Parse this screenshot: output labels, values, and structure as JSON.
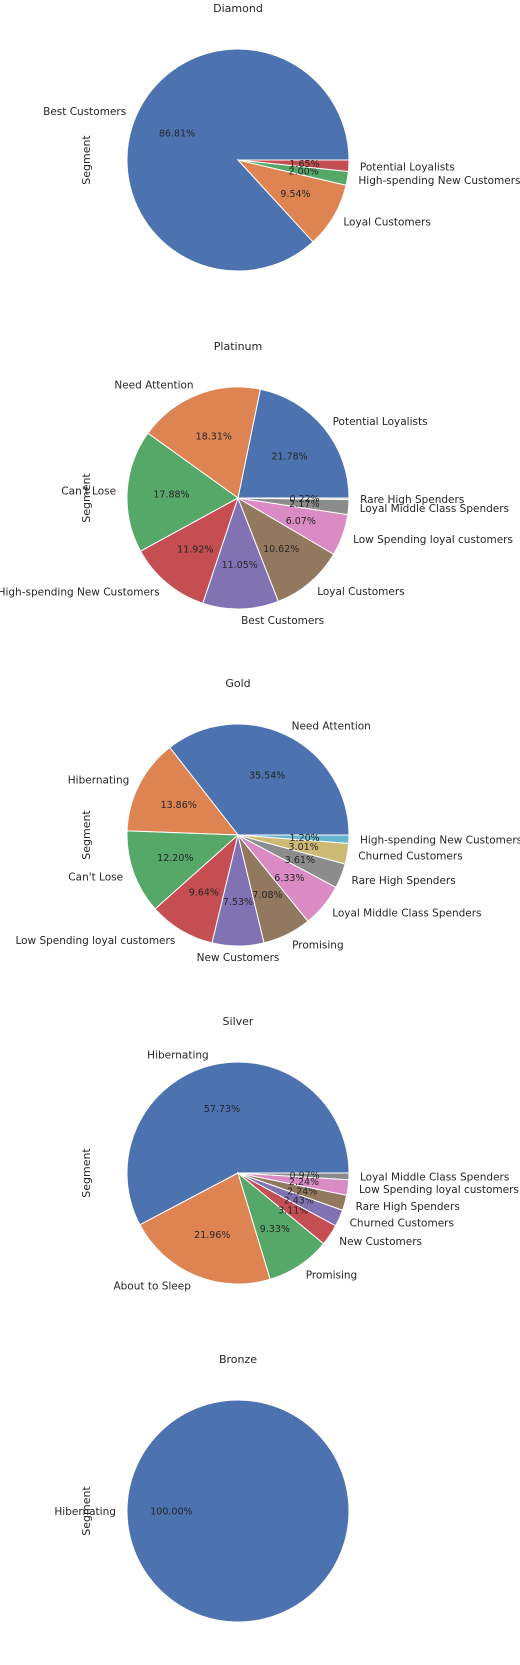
{
  "chart_data": [
    {
      "type": "pie",
      "title": "Diamond",
      "ylabel": "Segment",
      "labels": [
        "Best Customers",
        "Loyal Customers",
        "High-spending New Customers",
        "Potential Loyalists"
      ],
      "values": [
        86.81,
        9.54,
        2.0,
        1.65
      ],
      "value_labels": [
        "86.81%",
        "9.54%",
        "2.00%",
        "1.65%"
      ],
      "colors": [
        "#4c72b0",
        "#dd8452",
        "#55a868",
        "#c44e52"
      ]
    },
    {
      "type": "pie",
      "title": "Platinum",
      "ylabel": "Segment",
      "labels": [
        "Potential Loyalists",
        "Need Attention",
        "Can't Lose",
        "High-spending New Customers",
        "Best Customers",
        "Loyal Customers",
        "Low Spending loyal customers",
        "Loyal Middle Class Spenders",
        "Rare High Spenders"
      ],
      "values": [
        21.78,
        18.31,
        17.88,
        11.92,
        11.05,
        10.62,
        6.07,
        2.17,
        0.22
      ],
      "value_labels": [
        "21.78%",
        "18.31%",
        "17.88%",
        "11.92%",
        "11.05%",
        "10.62%",
        "6.07%",
        "2.17%",
        "0.22%"
      ],
      "colors": [
        "#4c72b0",
        "#dd8452",
        "#55a868",
        "#c44e52",
        "#8172b3",
        "#937860",
        "#da8bc3",
        "#8c8c8c",
        "#ccb974"
      ]
    },
    {
      "type": "pie",
      "title": "Gold",
      "ylabel": "Segment",
      "labels": [
        "Need Attention",
        "Hibernating",
        "Can't Lose",
        "Low Spending loyal customers",
        "New Customers",
        "Promising",
        "Loyal Middle Class Spenders",
        "Rare High Spenders",
        "Churned Customers",
        "High-spending New Customers"
      ],
      "values": [
        35.54,
        13.86,
        12.2,
        9.64,
        7.53,
        7.08,
        6.33,
        3.61,
        3.01,
        1.2
      ],
      "value_labels": [
        "35.54%",
        "13.86%",
        "12.20%",
        "9.64%",
        "7.53%",
        "7.08%",
        "6.33%",
        "3.61%",
        "3.01%",
        "1.20%"
      ],
      "colors": [
        "#4c72b0",
        "#dd8452",
        "#55a868",
        "#c44e52",
        "#8172b3",
        "#937860",
        "#da8bc3",
        "#8c8c8c",
        "#ccb974",
        "#64b5cd"
      ]
    },
    {
      "type": "pie",
      "title": "Silver",
      "ylabel": "Segment",
      "labels": [
        "Hibernating",
        "About to Sleep",
        "Promising",
        "New Customers",
        "Churned Customers",
        "Rare High Spenders",
        "Low Spending loyal customers",
        "Loyal Middle Class Spenders"
      ],
      "values": [
        57.73,
        21.96,
        9.33,
        3.11,
        2.43,
        2.24,
        2.24,
        0.97
      ],
      "value_labels": [
        "57.73%",
        "21.96%",
        "9.33%",
        "3.11%",
        "2.43%",
        "2.24%",
        "2.24%",
        "0.97%"
      ],
      "colors": [
        "#4c72b0",
        "#dd8452",
        "#55a868",
        "#c44e52",
        "#8172b3",
        "#937860",
        "#da8bc3",
        "#8c8c8c"
      ]
    },
    {
      "type": "pie",
      "title": "Bronze",
      "ylabel": "Segment",
      "labels": [
        "Hibernating"
      ],
      "values": [
        100.0
      ],
      "value_labels": [
        "100.00%"
      ],
      "colors": [
        "#4c72b0"
      ]
    }
  ]
}
